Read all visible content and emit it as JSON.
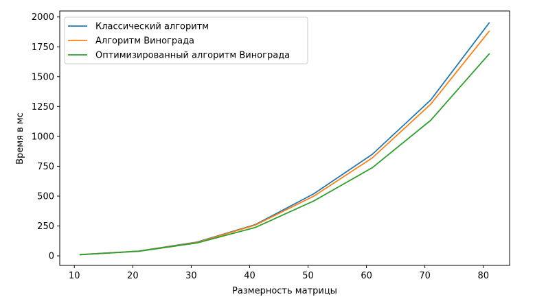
{
  "chart_data": {
    "type": "line",
    "title": "",
    "xlabel": "Размерность матрицы",
    "ylabel": "Время в мс",
    "x": [
      11,
      21,
      31,
      41,
      51,
      61,
      71,
      81
    ],
    "xlim": [
      7.5,
      84.5
    ],
    "ylim": [
      -80,
      2050
    ],
    "xticks": [
      10,
      20,
      30,
      40,
      50,
      60,
      70,
      80
    ],
    "yticks": [
      0,
      250,
      500,
      750,
      1000,
      1250,
      1500,
      1750,
      2000
    ],
    "grid": false,
    "legend_position": "top-left",
    "series": [
      {
        "name": "Классический алгоритм",
        "color": "#1f77b4",
        "values": [
          10,
          40,
          115,
          262,
          520,
          850,
          1305,
          1950
        ]
      },
      {
        "name": "Алгоритм Винограда",
        "color": "#ff7f0e",
        "values": [
          10,
          39,
          112,
          258,
          500,
          820,
          1270,
          1880
        ]
      },
      {
        "name": "Оптимизированный алгоритм Винограда",
        "color": "#2ca02c",
        "values": [
          10,
          38,
          108,
          238,
          460,
          738,
          1135,
          1690
        ]
      }
    ]
  }
}
